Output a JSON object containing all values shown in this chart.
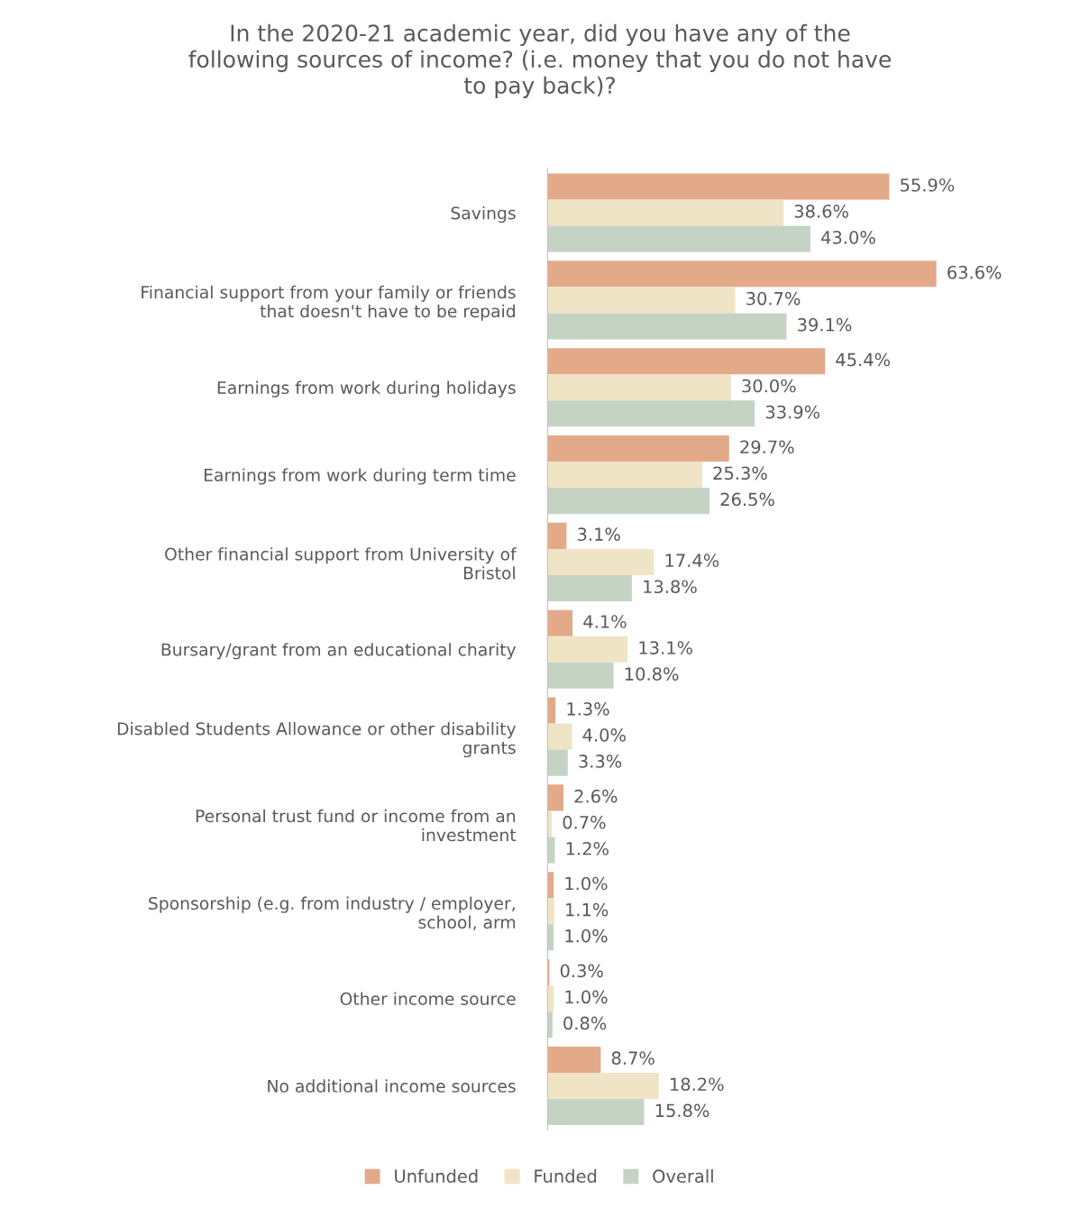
{
  "chart_data": {
    "type": "bar",
    "orientation": "horizontal",
    "title": "In the 2020-21 academic year, did you have any of the\nfollowing sources of income? (i.e. money that you do not have\nto pay back)?",
    "categories": [
      "Savings",
      "Financial support from your family or friends\nthat doesn't have to be repaid",
      "Earnings from work during holidays",
      "Earnings from work during term time",
      "Other financial support from University of\nBristol",
      "Bursary/grant from an educational charity",
      "Disabled Students Allowance or other disability\ngrants",
      "Personal trust fund or income from an\ninvestment",
      "Sponsorship (e.g. from industry / employer,\nschool, arm",
      "Other income source",
      "No additional income sources"
    ],
    "series": [
      {
        "name": "Unfunded",
        "color": "#e3aa8a",
        "values": [
          55.9,
          63.6,
          45.4,
          29.7,
          3.1,
          4.1,
          1.3,
          2.6,
          1.0,
          0.3,
          8.7
        ],
        "value_labels": [
          "55.9%",
          "63.6%",
          "45.4%",
          "29.7%",
          "3.1%",
          "4.1%",
          "1.3%",
          "2.6%",
          "1.0%",
          "0.3%",
          "8.7%"
        ]
      },
      {
        "name": "Funded",
        "color": "#f0e4c6",
        "values": [
          38.6,
          30.7,
          30.0,
          25.3,
          17.4,
          13.1,
          4.0,
          0.7,
          1.1,
          1.0,
          18.2
        ],
        "value_labels": [
          "38.6%",
          "30.7%",
          "30.0%",
          "25.3%",
          "17.4%",
          "13.1%",
          "4.0%",
          "0.7%",
          "1.1%",
          "1.0%",
          "18.2%"
        ]
      },
      {
        "name": "Overall",
        "color": "#c5d3c4",
        "values": [
          43.0,
          39.1,
          33.9,
          26.5,
          13.8,
          10.8,
          3.3,
          1.2,
          1.0,
          0.8,
          15.8
        ],
        "value_labels": [
          "43.0%",
          "39.1%",
          "33.9%",
          "26.5%",
          "13.8%",
          "10.8%",
          "3.3%",
          "1.2%",
          "1.0%",
          "0.8%",
          "15.8%"
        ]
      }
    ],
    "legend": "bottom",
    "tick_labels": "y"
  }
}
